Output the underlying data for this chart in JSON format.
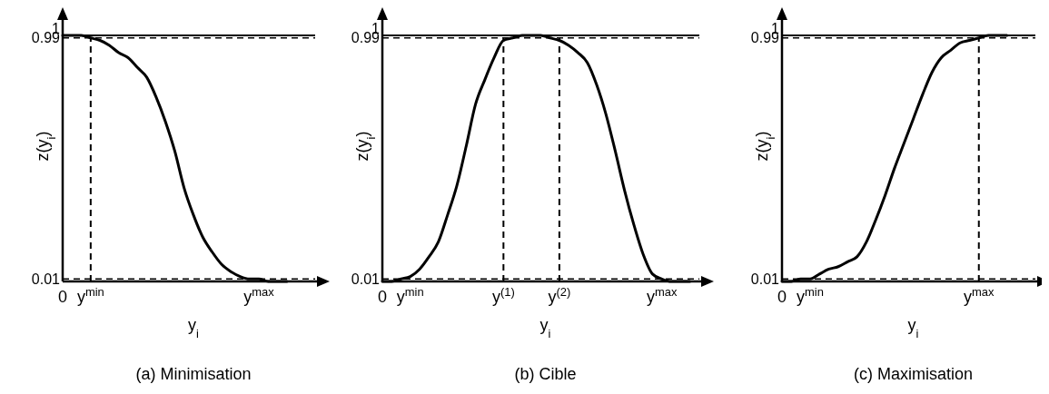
{
  "chart_data": [
    {
      "type": "line",
      "title": "(a) Minimisation",
      "xlabel": "y$_{i}$",
      "ylabel": "z(y$_{i}$)",
      "ylim": [
        0,
        1.1
      ],
      "categories": [
        "0",
        null,
        null,
        "y$^{min}$",
        null,
        null,
        null,
        null,
        null,
        null,
        null,
        null,
        null,
        null,
        null,
        null,
        null,
        null,
        null,
        null,
        null,
        "y$^{max}$",
        null,
        null,
        null,
        null,
        null,
        null,
        null
      ],
      "yticks": [
        0.01,
        0.99,
        1
      ],
      "series": [
        {
          "color": "#000000",
          "values": [
            1.0,
            1.0,
            1.0,
            0.99,
            0.98,
            0.96,
            0.93,
            0.91,
            0.87,
            0.83,
            0.75,
            0.65,
            0.53,
            0.38,
            0.27,
            0.18,
            0.12,
            0.07,
            0.04,
            0.02,
            0.01,
            0.01,
            0.0,
            0.0,
            0.0,
            null,
            null,
            null,
            null
          ]
        }
      ],
      "ref_lines": [
        {
          "axis": "y",
          "value": 1,
          "line_style": "solid"
        },
        {
          "axis": "y",
          "value": 0.99,
          "line_style": "dashed"
        },
        {
          "axis": "y",
          "value": 0.01,
          "line_style": "dashed"
        },
        {
          "axis": "x",
          "value": "y$^{min}$",
          "line_style": "dashed"
        }
      ],
      "grid": false,
      "line_style": "solid"
    },
    {
      "type": "line",
      "title": "(b) Cible",
      "xlabel": "y$_{i}$",
      "ylabel": "z(y$_{i}$)",
      "ylim": [
        0,
        1.1
      ],
      "categories": [
        "0",
        null,
        null,
        "y$^{min}$",
        null,
        null,
        null,
        null,
        null,
        null,
        null,
        null,
        null,
        "y$^{(1)}$",
        null,
        null,
        null,
        null,
        null,
        "y$^{(2)}$",
        null,
        null,
        null,
        null,
        null,
        null,
        null,
        null,
        null,
        null,
        "y$^{max}$",
        null,
        null,
        null,
        null,
        null
      ],
      "yticks": [
        0.01,
        0.99,
        1
      ],
      "series": [
        {
          "color": "#000000",
          "values": [
            0.0,
            0.0,
            0.01,
            0.02,
            0.05,
            0.1,
            0.16,
            0.27,
            0.39,
            0.55,
            0.72,
            0.82,
            0.91,
            0.98,
            0.99,
            1.0,
            1.0,
            1.0,
            0.99,
            0.98,
            0.96,
            0.93,
            0.89,
            0.8,
            0.68,
            0.53,
            0.37,
            0.23,
            0.11,
            0.03,
            0.01,
            0.0,
            0.0,
            0.0,
            null,
            null
          ]
        }
      ],
      "ref_lines": [
        {
          "axis": "y",
          "value": 1,
          "line_style": "solid"
        },
        {
          "axis": "y",
          "value": 0.99,
          "line_style": "dashed"
        },
        {
          "axis": "y",
          "value": 0.01,
          "line_style": "dashed"
        },
        {
          "axis": "x",
          "value": "y$^{(1)}$",
          "line_style": "dashed"
        },
        {
          "axis": "x",
          "value": "y$^{(2)}$",
          "line_style": "dashed"
        }
      ],
      "grid": false,
      "line_style": "solid"
    },
    {
      "type": "line",
      "title": "(c) Maximisation",
      "xlabel": "y$_{i}$",
      "ylabel": "z(y$_{i}$)",
      "ylim": [
        0,
        1.1
      ],
      "categories": [
        "0",
        null,
        null,
        "y$^{min}$",
        null,
        null,
        null,
        null,
        null,
        null,
        null,
        null,
        null,
        null,
        null,
        null,
        null,
        null,
        null,
        null,
        null,
        "y$^{max}$",
        null,
        null,
        null,
        null,
        null,
        null,
        null
      ],
      "yticks": [
        0.01,
        0.99,
        1
      ],
      "series": [
        {
          "color": "#000000",
          "values": [
            0.0,
            0.0,
            0.01,
            0.01,
            0.03,
            0.05,
            0.06,
            0.08,
            0.1,
            0.16,
            0.25,
            0.35,
            0.46,
            0.56,
            0.66,
            0.76,
            0.85,
            0.91,
            0.94,
            0.97,
            0.98,
            0.99,
            1.0,
            1.0,
            1.0,
            null,
            null,
            null,
            null
          ]
        }
      ],
      "ref_lines": [
        {
          "axis": "y",
          "value": 1,
          "line_style": "solid"
        },
        {
          "axis": "y",
          "value": 0.99,
          "line_style": "dashed"
        },
        {
          "axis": "y",
          "value": 0.01,
          "line_style": "dashed"
        },
        {
          "axis": "x",
          "value": "y$^{max}$",
          "line_style": "dashed"
        }
      ],
      "grid": false,
      "line_style": "solid"
    }
  ]
}
